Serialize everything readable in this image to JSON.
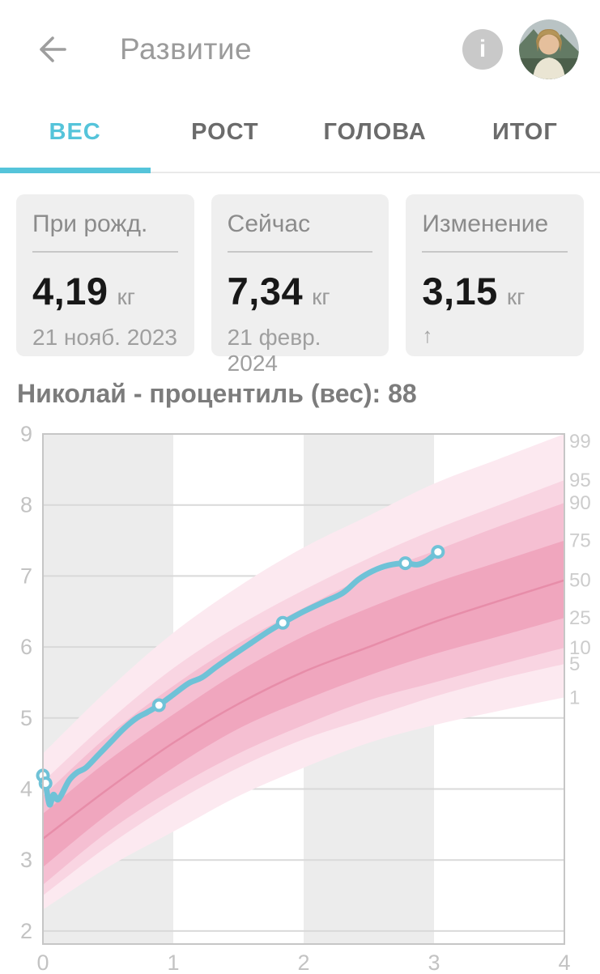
{
  "header": {
    "title": "Развитие",
    "info_icon_label": "i"
  },
  "tabs": [
    {
      "label": "ВЕС",
      "active": true
    },
    {
      "label": "РОСТ",
      "active": false
    },
    {
      "label": "ГОЛОВА",
      "active": false
    },
    {
      "label": "ИТОГ",
      "active": false
    }
  ],
  "cards": [
    {
      "label": "При рожд.",
      "value": "4,19",
      "unit": "кг",
      "sub": "21 нояб. 2023"
    },
    {
      "label": "Сейчас",
      "value": "7,34",
      "unit": "кг",
      "sub": "21 февр. 2024"
    },
    {
      "label": "Изменение",
      "value": "3,15",
      "unit": "кг",
      "sub": "↑"
    }
  ],
  "chart_title": "Николай - процентиль (вес): 88",
  "chart_data": {
    "type": "area",
    "title": "Николай - процентиль (вес): 88",
    "child_name": "Николай",
    "percentile_value": 88,
    "xlim": [
      0,
      4
    ],
    "ylim": [
      2,
      9
    ],
    "x_ticks": [
      "0",
      "1",
      "2",
      "3",
      "4"
    ],
    "y_ticks": [
      9,
      8,
      7,
      6,
      5,
      4,
      3,
      2
    ],
    "right_labels": [
      "99",
      "95",
      "90",
      "75",
      "50",
      "25",
      "10",
      "5",
      "1"
    ],
    "shaded_columns": [
      [
        0,
        1
      ],
      [
        2,
        3
      ]
    ],
    "grid": true,
    "percentile_months": [
      0,
      0.5,
      1,
      1.5,
      2,
      2.5,
      3,
      3.5,
      4
    ],
    "percentiles": {
      "p1": [
        2.3,
        2.9,
        3.4,
        3.9,
        4.3,
        4.65,
        4.9,
        5.1,
        5.29
      ],
      "p5": [
        2.5,
        3.2,
        3.8,
        4.3,
        4.7,
        5.0,
        5.3,
        5.55,
        5.76
      ],
      "p10": [
        2.65,
        3.4,
        4.0,
        4.5,
        4.9,
        5.25,
        5.5,
        5.75,
        5.99
      ],
      "p25": [
        2.9,
        3.65,
        4.3,
        4.85,
        5.25,
        5.6,
        5.9,
        6.15,
        6.41
      ],
      "p50": [
        3.3,
        4.0,
        4.65,
        5.2,
        5.65,
        6.0,
        6.35,
        6.65,
        6.94
      ],
      "p75": [
        3.65,
        4.4,
        5.05,
        5.65,
        6.15,
        6.55,
        6.9,
        7.2,
        7.5
      ],
      "p90": [
        3.9,
        4.75,
        5.45,
        6.05,
        6.55,
        7.0,
        7.35,
        7.7,
        8.03
      ],
      "p95": [
        4.1,
        4.95,
        5.7,
        6.3,
        6.8,
        7.25,
        7.65,
        8.0,
        8.35
      ],
      "p99": [
        4.5,
        5.4,
        6.2,
        6.85,
        7.4,
        7.85,
        8.3,
        8.65,
        9.0
      ]
    },
    "child_series": {
      "name": "Николай",
      "points": [
        [
          0.0,
          4.19
        ],
        [
          0.02,
          4.08
        ],
        [
          0.05,
          3.78
        ],
        [
          0.08,
          3.92
        ],
        [
          0.11,
          3.85
        ],
        [
          0.14,
          3.91
        ],
        [
          0.2,
          4.12
        ],
        [
          0.26,
          4.23
        ],
        [
          0.33,
          4.3
        ],
        [
          0.42,
          4.47
        ],
        [
          0.52,
          4.66
        ],
        [
          0.62,
          4.85
        ],
        [
          0.72,
          5.0
        ],
        [
          0.8,
          5.08
        ],
        [
          0.89,
          5.18
        ],
        [
          1.0,
          5.33
        ],
        [
          1.12,
          5.49
        ],
        [
          1.22,
          5.57
        ],
        [
          1.33,
          5.72
        ],
        [
          1.47,
          5.9
        ],
        [
          1.6,
          6.06
        ],
        [
          1.73,
          6.22
        ],
        [
          1.84,
          6.34
        ],
        [
          2.0,
          6.5
        ],
        [
          2.15,
          6.63
        ],
        [
          2.3,
          6.76
        ],
        [
          2.42,
          6.95
        ],
        [
          2.53,
          7.07
        ],
        [
          2.65,
          7.15
        ],
        [
          2.78,
          7.18
        ],
        [
          2.87,
          7.16
        ],
        [
          2.94,
          7.21
        ],
        [
          3.03,
          7.34
        ]
      ],
      "markers": [
        [
          0.0,
          4.19
        ],
        [
          0.02,
          4.08
        ],
        [
          0.89,
          5.18
        ],
        [
          1.84,
          6.34
        ],
        [
          2.78,
          7.18
        ],
        [
          3.03,
          7.34
        ]
      ]
    },
    "colors": {
      "accent": "#55c4da",
      "line": "#6fc2d7",
      "marker_fill": "#ffffff",
      "band_outer": "#fce9f0",
      "band_mid": "#f9d5e2",
      "band_inner": "#f5bfd2",
      "band_core": "#f0a6be",
      "median": "#e78da9",
      "column": "#ececec",
      "grid": "#d9d9d9",
      "border": "#c6c6c6",
      "tick": "#c3c3c3",
      "right_tick": "#cccccc"
    }
  }
}
